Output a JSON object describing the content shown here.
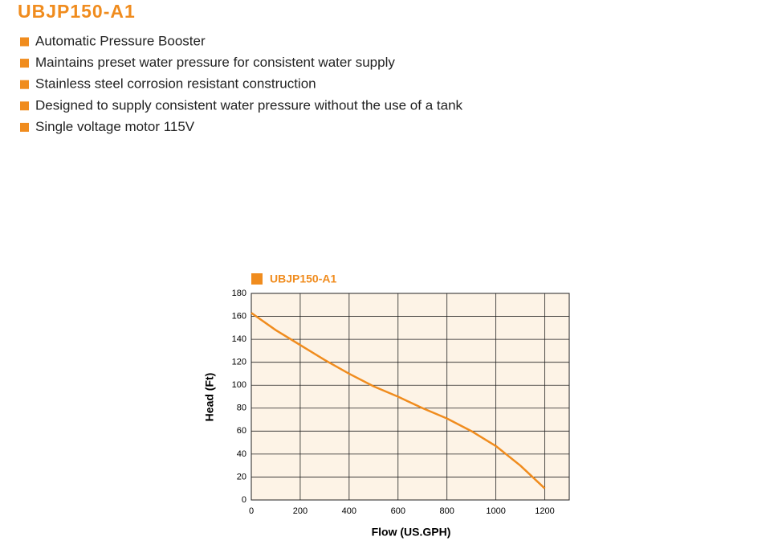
{
  "header": {
    "title": "UBJP150-A1"
  },
  "features": [
    "Automatic Pressure Booster",
    "Maintains preset water pressure for consistent water supply",
    "Stainless steel corrosion resistant construction",
    "Designed to supply consistent water pressure without the use of a tank",
    "Single voltage motor 115V"
  ],
  "chart_data": {
    "type": "line",
    "x_label": "Flow (US.GPH)",
    "y_label": "Head (Ft)",
    "x": [
      0,
      100,
      200,
      300,
      400,
      500,
      600,
      700,
      800,
      900,
      1000,
      1100,
      1200
    ],
    "series": [
      {
        "name": "UBJP150-A1",
        "color": "#f08c1e",
        "values": [
          163,
          148,
          135,
          122,
          110,
          99,
          90,
          80,
          71,
          60,
          47,
          30,
          10
        ]
      }
    ],
    "xlim": [
      0,
      1300
    ],
    "xticks": [
      0,
      200,
      400,
      600,
      800,
      1000,
      1200
    ],
    "ylim": [
      0,
      180
    ],
    "yticks": [
      0,
      20,
      40,
      60,
      80,
      100,
      120,
      140,
      160,
      180
    ],
    "grid": true
  }
}
